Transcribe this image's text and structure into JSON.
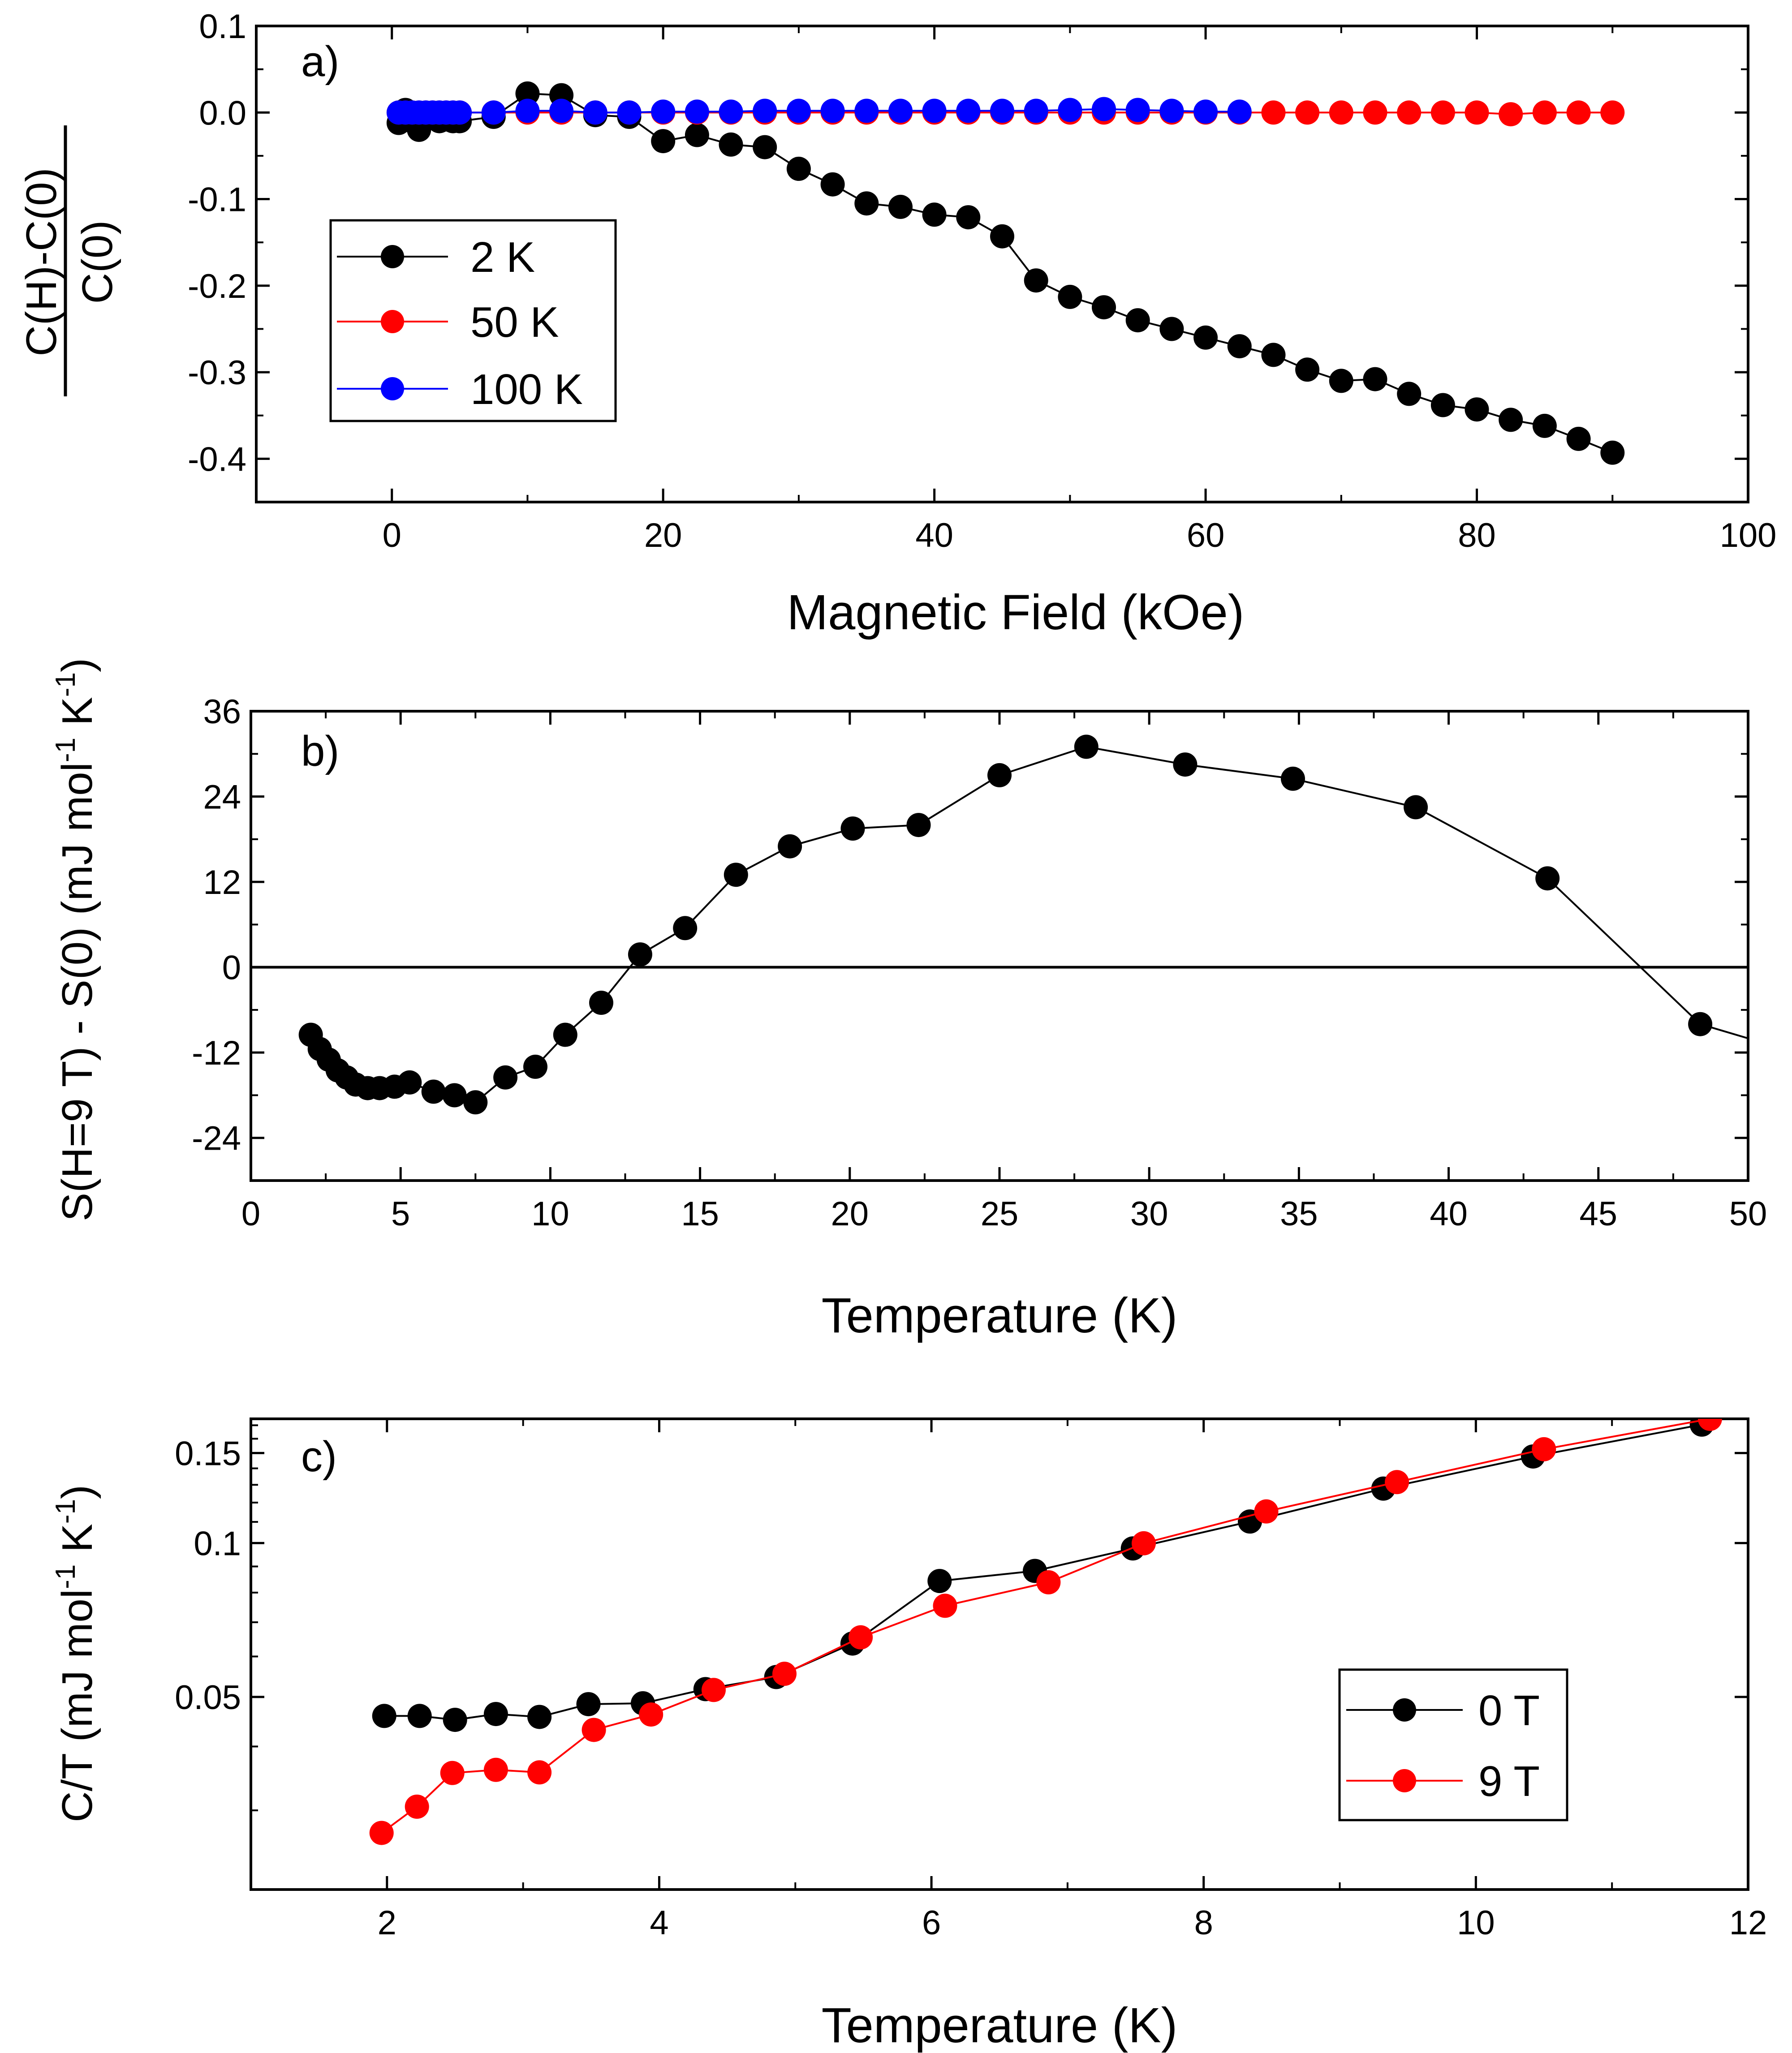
{
  "chart_data": [
    {
      "panel": "a)",
      "type": "scatter",
      "xlabel": "Magnetic Field (kOe)",
      "ylabel": {
        "numerator": "C(H)-C(0)",
        "denominator": "C(0)"
      },
      "xlim": [
        -10,
        100
      ],
      "ylim": [
        -0.45,
        0.1
      ],
      "xticks": [
        "0",
        "20",
        "40",
        "60",
        "80",
        "100"
      ],
      "xtick_values": [
        0,
        20,
        40,
        60,
        80,
        100
      ],
      "yticks": [
        "0.1",
        "0.0",
        "-0.1",
        "-0.2",
        "-0.3",
        "-0.4"
      ],
      "ytick_values": [
        0.1,
        0.0,
        -0.1,
        -0.2,
        -0.3,
        -0.4
      ],
      "legend_position": "left",
      "series": [
        {
          "name": "2 K",
          "color": "#000000",
          "x": [
            0.5,
            1,
            1.5,
            2,
            2.5,
            3,
            3.5,
            4,
            4.5,
            5,
            7.5,
            10,
            12.5,
            15,
            17.5,
            20,
            22.5,
            25,
            27.5,
            30,
            32.5,
            35,
            37.5,
            40,
            42.5,
            45,
            47.5,
            50,
            52.5,
            55,
            57.5,
            60,
            62.5,
            65,
            67.5,
            70,
            72.5,
            75,
            77.5,
            80,
            82.5,
            85,
            87.5,
            90
          ],
          "y": [
            -0.012,
            0.003,
            -0.01,
            -0.02,
            -0.008,
            -0.005,
            -0.01,
            -0.008,
            -0.01,
            -0.01,
            -0.005,
            0.022,
            0.02,
            -0.003,
            -0.005,
            -0.033,
            -0.026,
            -0.037,
            -0.04,
            -0.065,
            -0.083,
            -0.105,
            -0.109,
            -0.118,
            -0.121,
            -0.143,
            -0.194,
            -0.213,
            -0.225,
            -0.24,
            -0.25,
            -0.26,
            -0.27,
            -0.28,
            -0.297,
            -0.31,
            -0.308,
            -0.325,
            -0.338,
            -0.343,
            -0.355,
            -0.362,
            -0.377,
            -0.393
          ]
        },
        {
          "name": "50 K",
          "color": "#ff0000",
          "x": [
            0.5,
            1,
            1.5,
            2,
            2.5,
            3,
            3.5,
            4,
            4.5,
            5,
            7.5,
            10,
            12.5,
            15,
            17.5,
            20,
            22.5,
            25,
            27.5,
            30,
            32.5,
            35,
            37.5,
            40,
            42.5,
            45,
            47.5,
            50,
            52.5,
            55,
            57.5,
            60,
            62.5,
            65,
            67.5,
            70,
            72.5,
            75,
            77.5,
            80,
            82.5,
            85,
            87.5,
            90
          ],
          "y": [
            0,
            0,
            0,
            0,
            0,
            0,
            0,
            0,
            0,
            0,
            0,
            0,
            0,
            0,
            0,
            0,
            0,
            0,
            0,
            0,
            0,
            0,
            0,
            0,
            0,
            0,
            0,
            0,
            0,
            0,
            0,
            0,
            0,
            0,
            0,
            0,
            0,
            0,
            0,
            0,
            -0.002,
            0,
            0,
            0
          ]
        },
        {
          "name": "100 K",
          "color": "#0000ff",
          "x": [
            0.5,
            1,
            1.5,
            2,
            2.5,
            3,
            3.5,
            4,
            4.5,
            5,
            7.5,
            10,
            12.5,
            15,
            17.5,
            20,
            22.5,
            25,
            27.5,
            30,
            32.5,
            35,
            37.5,
            40,
            42.5,
            45,
            47.5,
            50,
            52.5,
            55,
            57.5,
            60,
            62.5
          ],
          "y": [
            0,
            0,
            0,
            0,
            0,
            0,
            0,
            0,
            0,
            0,
            0,
            0.002,
            0.002,
            0,
            0,
            0.001,
            0.001,
            0.001,
            0.002,
            0.002,
            0.002,
            0.002,
            0.002,
            0.002,
            0.002,
            0.002,
            0.002,
            0.003,
            0.004,
            0.003,
            0.002,
            0.001,
            0.001
          ]
        }
      ]
    },
    {
      "panel": "b)",
      "type": "line",
      "xlabel": "Temperature (K)",
      "ylabel": "S(H=9 T) - S(0) (mJ mol-1 K-1)",
      "ylabel_parts": [
        "S(H=9 T) - S(0) (mJ mol",
        "-1",
        " K",
        "-1",
        ")"
      ],
      "xlim": [
        0,
        50
      ],
      "ylim": [
        -30,
        36
      ],
      "xticks": [
        "0",
        "5",
        "10",
        "15",
        "20",
        "25",
        "30",
        "35",
        "40",
        "45",
        "50"
      ],
      "xtick_values": [
        0,
        5,
        10,
        15,
        20,
        25,
        30,
        35,
        40,
        45,
        50
      ],
      "yticks": [
        "36",
        "24",
        "12",
        "0",
        "-12",
        "-24"
      ],
      "ytick_values": [
        36,
        24,
        12,
        0,
        -12,
        -24
      ],
      "zero_line": true,
      "series": [
        {
          "name": "S(9T)-S(0)",
          "color": "#000000",
          "x": [
            2.0,
            2.3,
            2.6,
            2.9,
            3.2,
            3.5,
            3.9,
            4.3,
            4.8,
            5.3,
            6.1,
            6.8,
            7.5,
            8.5,
            9.5,
            10.5,
            11.7,
            13.0,
            14.5,
            16.2,
            18.0,
            20.1,
            22.3,
            25.0,
            27.9,
            31.2,
            34.8,
            38.9,
            43.3,
            48.4,
            50.0
          ],
          "y": [
            -9.5,
            -11.5,
            -13.0,
            -14.5,
            -15.5,
            -16.5,
            -17.0,
            -17.0,
            -16.8,
            -16.2,
            -17.5,
            -18.0,
            -19.0,
            -15.5,
            -14.0,
            -9.5,
            -5.0,
            1.8,
            5.5,
            13.0,
            17.0,
            19.5,
            20.0,
            27.0,
            31.0,
            28.5,
            26.5,
            22.5,
            12.5,
            -8.0,
            -10.0
          ]
        }
      ]
    },
    {
      "panel": "c)",
      "type": "line",
      "yscale": "log",
      "xlabel": "Temperature (K)",
      "ylabel": "C/T (mJ mol-1 K-1)",
      "ylabel_parts": [
        "C/T (mJ mol",
        "-1",
        " K",
        "-1",
        ")"
      ],
      "xlim": [
        1,
        12
      ],
      "ylim": [
        0.021,
        0.175
      ],
      "xticks": [
        "2",
        "4",
        "6",
        "8",
        "10",
        "12"
      ],
      "xtick_values": [
        2,
        4,
        6,
        8,
        10,
        12
      ],
      "yticks": [
        "0.15",
        "0.1",
        "0.05"
      ],
      "ytick_values": [
        0.15,
        0.1,
        0.05
      ],
      "legend_position": "bottom-right",
      "series": [
        {
          "name": "0 T",
          "color": "#000000",
          "x": [
            1.98,
            2.24,
            2.5,
            2.8,
            3.12,
            3.48,
            3.88,
            4.34,
            4.86,
            5.42,
            6.06,
            6.76,
            7.48,
            8.34,
            9.32,
            10.42,
            11.66
          ],
          "y": [
            0.0459,
            0.0459,
            0.0451,
            0.0463,
            0.0457,
            0.0484,
            0.0486,
            0.0518,
            0.0547,
            0.0636,
            0.0843,
            0.0882,
            0.0976,
            0.1102,
            0.1278,
            0.1477,
            0.1705
          ]
        },
        {
          "name": "9 T",
          "color": "#ff0000",
          "x": [
            1.96,
            2.22,
            2.48,
            2.8,
            3.12,
            3.52,
            3.94,
            4.4,
            4.92,
            5.48,
            6.1,
            6.86,
            7.56,
            8.46,
            9.42,
            10.5,
            11.72
          ],
          "y": [
            0.0271,
            0.0305,
            0.0355,
            0.036,
            0.0356,
            0.0431,
            0.0462,
            0.0516,
            0.0555,
            0.0654,
            0.0754,
            0.0838,
            0.0999,
            0.1153,
            0.1316,
            0.1526,
            0.175
          ]
        }
      ]
    }
  ]
}
